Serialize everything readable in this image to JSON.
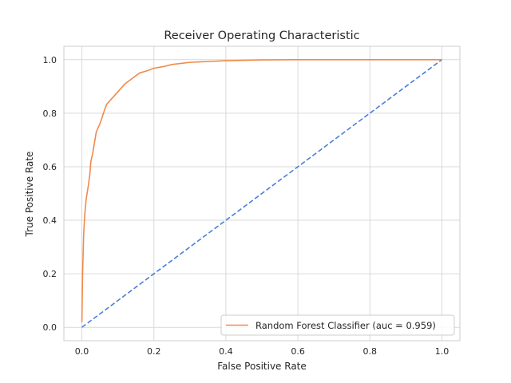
{
  "chart_data": {
    "type": "line",
    "title": "Receiver Operating Characteristic",
    "xlabel": "False Positive Rate",
    "ylabel": "True Positive Rate",
    "xlim": [
      -0.05,
      1.05
    ],
    "ylim": [
      -0.05,
      1.05
    ],
    "xticks": [
      0.0,
      0.2,
      0.4,
      0.6,
      0.8,
      1.0
    ],
    "yticks": [
      0.0,
      0.2,
      0.4,
      0.6,
      0.8,
      1.0
    ],
    "xtick_labels": [
      "0.0",
      "0.2",
      "0.4",
      "0.6",
      "0.8",
      "1.0"
    ],
    "ytick_labels": [
      "0.0",
      "0.2",
      "0.4",
      "0.6",
      "0.8",
      "1.0"
    ],
    "grid": true,
    "legend_position": "lower-right",
    "series": [
      {
        "name": "Random Forest Classifier (auc = 0.959)",
        "color": "#f08a4b",
        "style": "solid",
        "x": [
          0.0,
          0.002,
          0.005,
          0.008,
          0.012,
          0.018,
          0.022,
          0.025,
          0.03,
          0.035,
          0.04,
          0.045,
          0.05,
          0.055,
          0.06,
          0.065,
          0.07,
          0.08,
          0.09,
          0.1,
          0.12,
          0.14,
          0.16,
          0.18,
          0.2,
          0.23,
          0.25,
          0.3,
          0.35,
          0.4,
          0.5,
          0.6,
          0.7,
          0.8,
          0.9,
          1.0
        ],
        "y": [
          0.02,
          0.2,
          0.35,
          0.42,
          0.48,
          0.53,
          0.57,
          0.62,
          0.65,
          0.69,
          0.73,
          0.745,
          0.76,
          0.78,
          0.8,
          0.82,
          0.835,
          0.85,
          0.865,
          0.88,
          0.91,
          0.93,
          0.95,
          0.958,
          0.968,
          0.975,
          0.982,
          0.99,
          0.993,
          0.996,
          0.999,
          1.0,
          1.0,
          1.0,
          1.0,
          1.0
        ]
      },
      {
        "color": "#4a7fd6",
        "style": "dashed",
        "x": [
          0.0,
          1.0
        ],
        "y": [
          0.0,
          1.0
        ]
      }
    ]
  }
}
